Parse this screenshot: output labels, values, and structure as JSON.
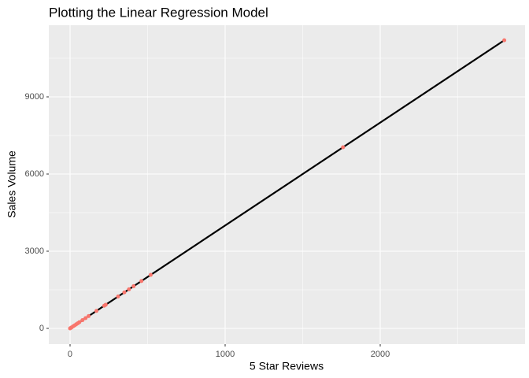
{
  "chart_data": {
    "type": "scatter",
    "title": "Plotting the Linear Regression Model",
    "x_label": "5 Star Reviews",
    "y_label": "Sales Volume",
    "x": [
      0,
      4,
      10,
      20,
      30,
      40,
      50,
      60,
      80,
      100,
      120,
      170,
      220,
      230,
      310,
      350,
      380,
      410,
      460,
      520,
      1760,
      2800
    ],
    "series": [
      {
        "color": "#F8766D",
        "values": [
          0,
          16,
          40,
          80,
          120,
          160,
          200,
          240,
          320,
          400,
          480,
          680,
          880,
          920,
          1240,
          1400,
          1520,
          1640,
          1840,
          2080,
          7040,
          11200
        ]
      }
    ],
    "regression": {
      "color": "#000000",
      "x": [
        0,
        2800
      ],
      "y": [
        0,
        11200
      ]
    },
    "xlim": [
      -137,
      2934
    ],
    "ylim": [
      -612,
      11786
    ],
    "xticks": [
      0,
      1000,
      2000
    ],
    "yticks": [
      0,
      3000,
      6000,
      9000
    ],
    "xminor": [
      500,
      1500,
      2500
    ],
    "yminor": [
      1500,
      4500,
      7500,
      10500
    ],
    "grid": true
  }
}
